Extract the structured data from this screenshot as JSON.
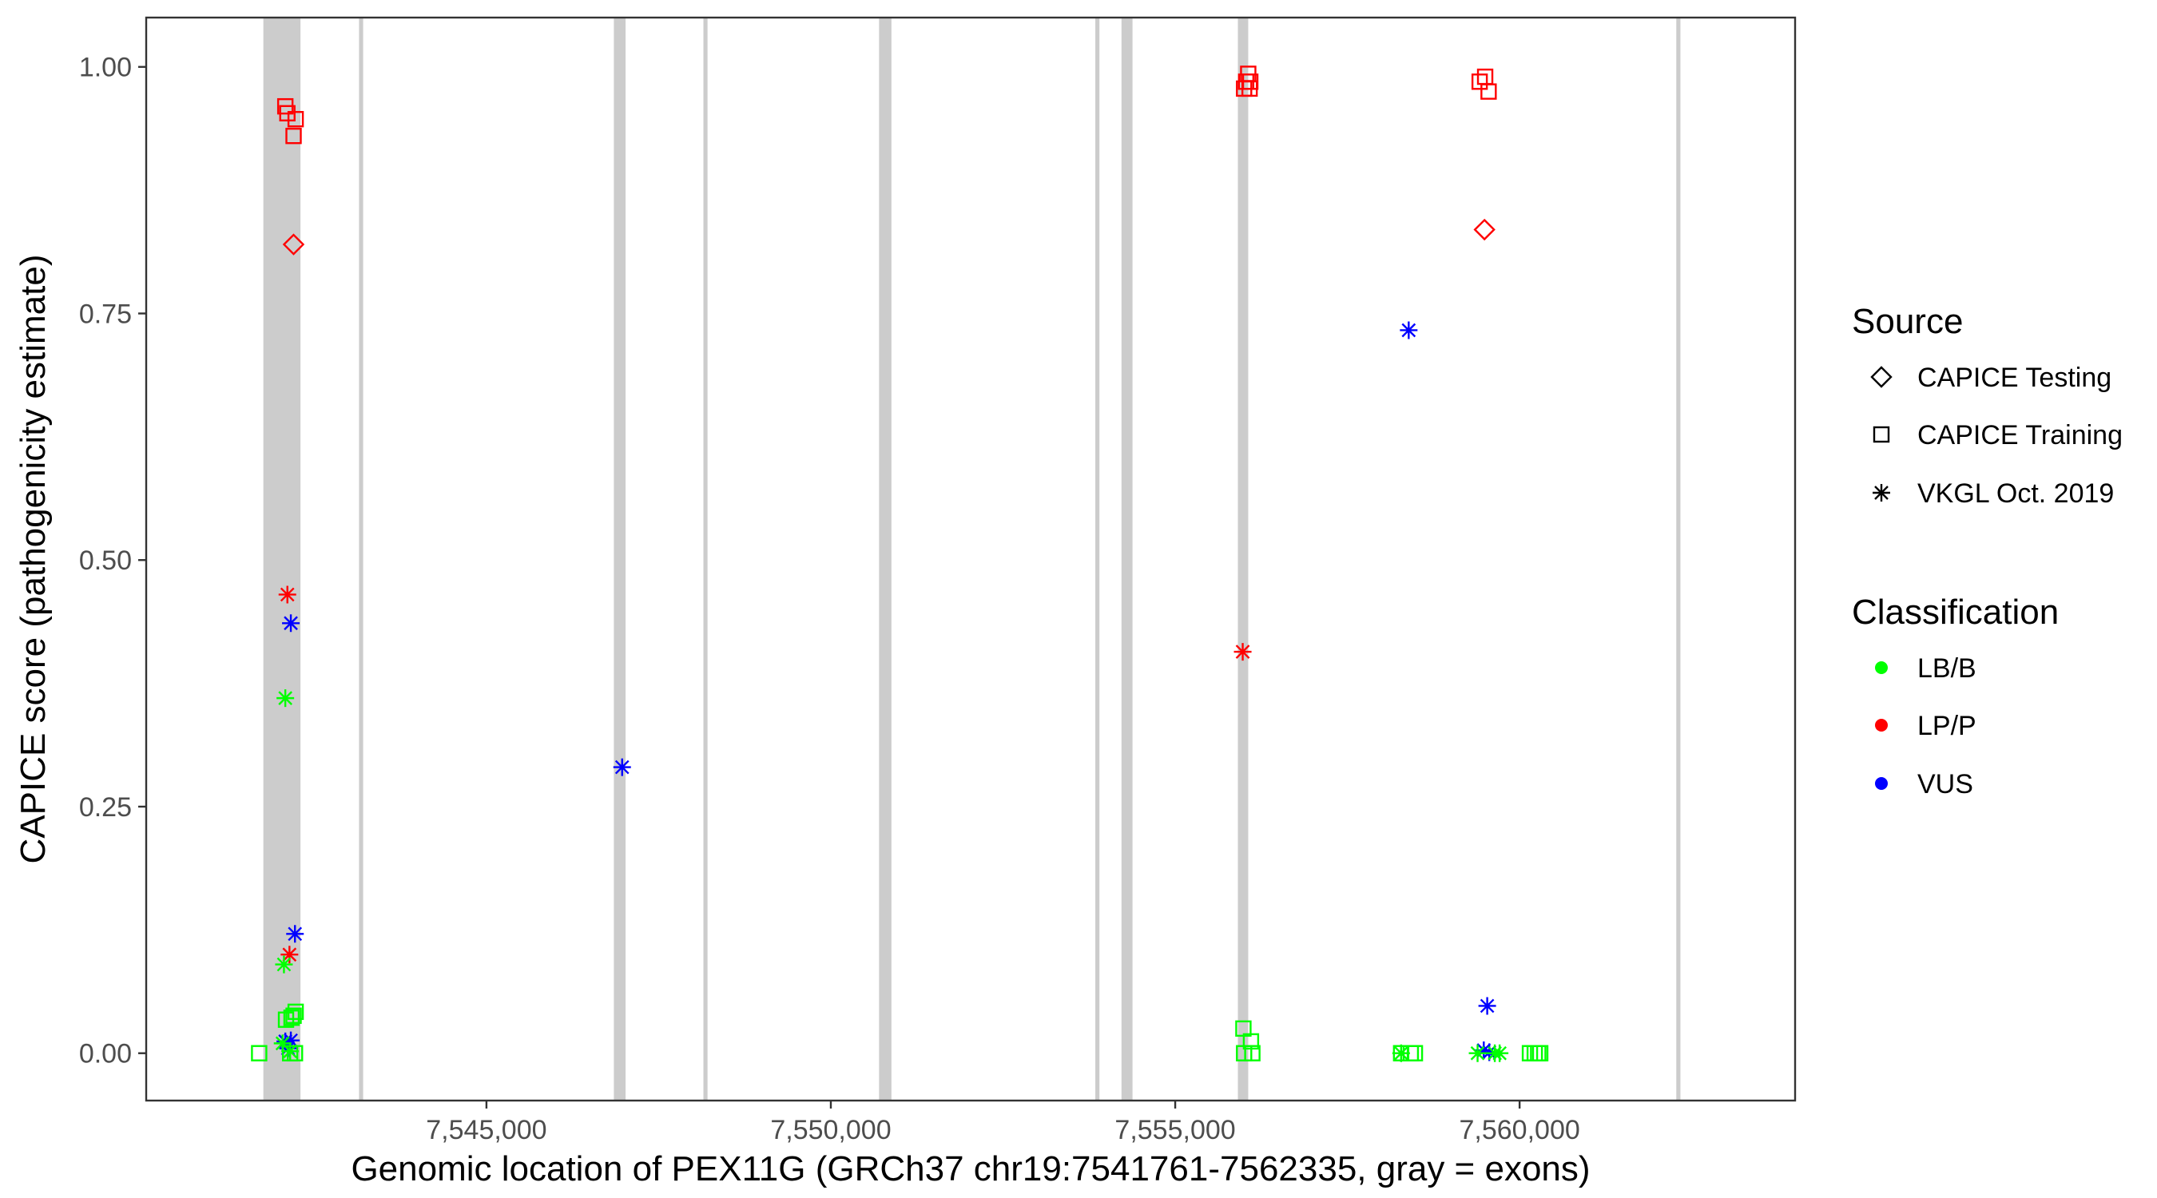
{
  "chart_data": {
    "type": "scatter",
    "xlabel": "Genomic location of PEX11G (GRCh37 chr19:7541761-7562335, gray = exons)",
    "ylabel": "CAPICE score (pathogenicity estimate)",
    "xlim": [
      7540060,
      7564000
    ],
    "ylim": [
      -0.048,
      1.05
    ],
    "x_ticks": [
      7545000,
      7550000,
      7555000,
      7560000
    ],
    "x_tick_labels": [
      "7,545,000",
      "7,550,000",
      "7,555,000",
      "7,560,000"
    ],
    "y_ticks": [
      0.0,
      0.25,
      0.5,
      0.75,
      1.0
    ],
    "y_tick_labels": [
      "0.00",
      "0.25",
      "0.50",
      "0.75",
      "1.00"
    ],
    "grid": false,
    "exons": [
      [
        7541761,
        7542300
      ],
      [
        7543150,
        7543210
      ],
      [
        7546850,
        7547020
      ],
      [
        7548150,
        7548210
      ],
      [
        7550700,
        7550880
      ],
      [
        7553840,
        7553900
      ],
      [
        7554220,
        7554380
      ],
      [
        7555910,
        7556060
      ],
      [
        7562275,
        7562335
      ]
    ],
    "legend_position": "right",
    "legend": {
      "source_title": "Source",
      "source_entries": [
        {
          "label": "CAPICE Testing",
          "shape": "diamond"
        },
        {
          "label": "CAPICE Training",
          "shape": "square"
        },
        {
          "label": "VKGL Oct. 2019",
          "shape": "asterisk"
        }
      ],
      "class_title": "Classification",
      "class_entries": [
        {
          "label": "LB/B",
          "color": "#00ff00"
        },
        {
          "label": "LP/P",
          "color": "#ff0000"
        },
        {
          "label": "VUS",
          "color": "#0000ff"
        }
      ]
    },
    "series": [
      {
        "source": "CAPICE Training",
        "classification": "LP/P",
        "points": [
          [
            7542080,
            0.96
          ],
          [
            7542110,
            0.953
          ],
          [
            7542230,
            0.947
          ],
          [
            7542200,
            0.93
          ],
          [
            7556060,
            0.993
          ],
          [
            7556030,
            0.985
          ],
          [
            7556090,
            0.985
          ],
          [
            7556000,
            0.978
          ],
          [
            7556080,
            0.978
          ],
          [
            7559500,
            0.99
          ],
          [
            7559420,
            0.985
          ],
          [
            7559550,
            0.975
          ]
        ]
      },
      {
        "source": "CAPICE Testing",
        "classification": "LP/P",
        "points": [
          [
            7542200,
            0.82
          ],
          [
            7559490,
            0.835
          ]
        ]
      },
      {
        "source": "VKGL Oct. 2019",
        "classification": "LP/P",
        "points": [
          [
            7542110,
            0.465
          ],
          [
            7542140,
            0.1
          ],
          [
            7555980,
            0.407
          ]
        ]
      },
      {
        "source": "VKGL Oct. 2019",
        "classification": "VUS",
        "points": [
          [
            7542160,
            0.436
          ],
          [
            7546970,
            0.29
          ],
          [
            7542220,
            0.121
          ],
          [
            7542080,
            0.012
          ],
          [
            7542160,
            0.013
          ],
          [
            7542120,
            0.005
          ],
          [
            7558390,
            0.733
          ],
          [
            7559530,
            0.048
          ],
          [
            7559480,
            0.003
          ],
          [
            7559560,
            0.001
          ]
        ]
      },
      {
        "source": "VKGL Oct. 2019",
        "classification": "LB/B",
        "points": [
          [
            7542080,
            0.36
          ],
          [
            7542060,
            0.09
          ],
          [
            7542040,
            0.01
          ],
          [
            7542150,
            0.002
          ],
          [
            7558280,
            0.0
          ],
          [
            7559390,
            0.0
          ],
          [
            7559710,
            0.0
          ],
          [
            7559640,
            0.0
          ]
        ]
      },
      {
        "source": "CAPICE Training",
        "classification": "LB/B",
        "points": [
          [
            7541700,
            0.0
          ],
          [
            7542220,
            0.0
          ],
          [
            7542150,
            0.0
          ],
          [
            7542090,
            0.034
          ],
          [
            7542200,
            0.038
          ],
          [
            7542230,
            0.042
          ],
          [
            7542170,
            0.036
          ],
          [
            7555990,
            0.025
          ],
          [
            7556100,
            0.012
          ],
          [
            7556000,
            0.0
          ],
          [
            7556120,
            0.0
          ],
          [
            7558280,
            0.0
          ],
          [
            7558420,
            0.0
          ],
          [
            7558480,
            0.0
          ],
          [
            7560150,
            0.0
          ],
          [
            7560220,
            0.0
          ],
          [
            7560300,
            0.0
          ],
          [
            7560270,
            0.0
          ]
        ]
      }
    ],
    "colors": {
      "LB/B": "#00ff00",
      "LP/P": "#ff0000",
      "VUS": "#0000ff",
      "exon": "#cccccc"
    }
  }
}
